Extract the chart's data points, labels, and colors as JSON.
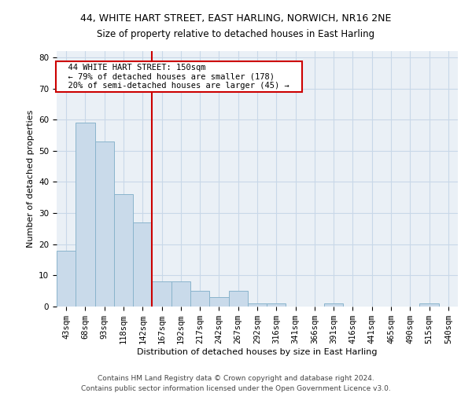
{
  "title1": "44, WHITE HART STREET, EAST HARLING, NORWICH, NR16 2NE",
  "title2": "Size of property relative to detached houses in East Harling",
  "xlabel": "Distribution of detached houses by size in East Harling",
  "ylabel": "Number of detached properties",
  "footnote1": "Contains HM Land Registry data © Crown copyright and database right 2024.",
  "footnote2": "Contains public sector information licensed under the Open Government Licence v3.0.",
  "annotation_line1": "  44 WHITE HART STREET: 150sqm  ",
  "annotation_line2": "  ← 79% of detached houses are smaller (178)  ",
  "annotation_line3": "  20% of semi-detached houses are larger (45) →  ",
  "bar_labels": [
    "43sqm",
    "68sqm",
    "93sqm",
    "118sqm",
    "142sqm",
    "167sqm",
    "192sqm",
    "217sqm",
    "242sqm",
    "267sqm",
    "292sqm",
    "316sqm",
    "341sqm",
    "366sqm",
    "391sqm",
    "416sqm",
    "441sqm",
    "465sqm",
    "490sqm",
    "515sqm",
    "540sqm"
  ],
  "bar_values": [
    18,
    59,
    53,
    36,
    27,
    8,
    8,
    5,
    3,
    5,
    1,
    1,
    0,
    0,
    1,
    0,
    0,
    0,
    0,
    1,
    0
  ],
  "bar_color": "#c9daea",
  "bar_edge_color": "#8ab4cc",
  "vline_x": 4.5,
  "vline_color": "#cc0000",
  "annotation_box_edge": "#cc0000",
  "annotation_box_face": "#ffffff",
  "ylim": [
    0,
    82
  ],
  "yticks": [
    0,
    10,
    20,
    30,
    40,
    50,
    60,
    70,
    80
  ],
  "grid_color": "#c8d8e8",
  "bg_color": "#eaf0f6",
  "title1_fontsize": 9,
  "title2_fontsize": 8.5,
  "xlabel_fontsize": 8,
  "ylabel_fontsize": 8,
  "tick_fontsize": 7.5,
  "annotation_fontsize": 7.5,
  "footnote_fontsize": 6.5
}
